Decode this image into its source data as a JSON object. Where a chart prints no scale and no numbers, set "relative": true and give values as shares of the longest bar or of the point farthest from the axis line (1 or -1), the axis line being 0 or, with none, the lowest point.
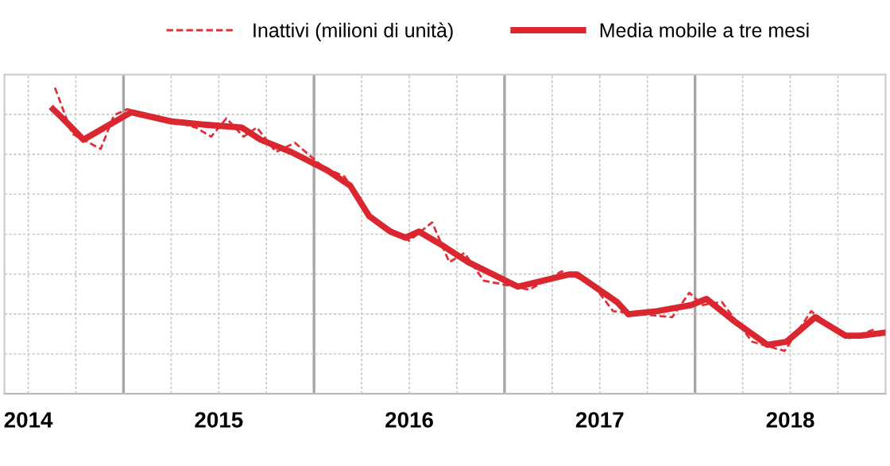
{
  "chart_data": {
    "type": "line",
    "relative": true,
    "grid": true,
    "legend": "top right",
    "xlim": [
      2014.375,
      2019.0
    ],
    "xticks": [
      {
        "value": 2014.5,
        "label": "2014"
      },
      {
        "value": 2015.5,
        "label": "2015"
      },
      {
        "value": 2016.5,
        "label": "2016"
      },
      {
        "value": 2017.5,
        "label": "2017"
      },
      {
        "value": 2018.5,
        "label": "2018"
      }
    ],
    "series": [
      {
        "name": "Inattivi (milioni di unità)",
        "color": "#e0303a",
        "line_style": "dashed",
        "x": [
          2014.64,
          2014.73,
          2014.88,
          2014.95,
          2015.02,
          2015.38,
          2015.46,
          2015.54,
          2015.63,
          2015.7,
          2015.8,
          2015.9,
          2016.05,
          2016.16,
          2016.29,
          2016.5,
          2016.62,
          2016.71,
          2016.79,
          2016.89,
          2017.13,
          2017.3,
          2017.46,
          2017.57,
          2017.88,
          2017.97,
          2018.04,
          2018.14,
          2018.3,
          2018.47,
          2018.61,
          2018.8,
          2018.94
        ],
        "values": [
          1.0,
          0.85,
          0.8,
          0.91,
          0.93,
          0.87,
          0.84,
          0.9,
          0.84,
          0.87,
          0.79,
          0.82,
          0.74,
          0.71,
          0.58,
          0.5,
          0.56,
          0.43,
          0.46,
          0.37,
          0.34,
          0.4,
          0.36,
          0.27,
          0.25,
          0.33,
          0.29,
          0.3,
          0.17,
          0.14,
          0.27,
          0.18,
          0.21
        ]
      },
      {
        "name": "Media mobile a tre mesi",
        "color": "#d9262f",
        "line_style": "solid",
        "x": [
          2014.63,
          2014.68,
          2014.79,
          2015.04,
          2015.25,
          2015.41,
          2015.62,
          2015.72,
          2015.88,
          2016.07,
          2016.19,
          2016.29,
          2016.4,
          2016.48,
          2016.55,
          2016.66,
          2016.76,
          2016.81,
          2017.07,
          2017.34,
          2017.38,
          2017.59,
          2017.65,
          2017.8,
          2017.98,
          2018.06,
          2018.2,
          2018.38,
          2018.48,
          2018.63,
          2018.79,
          2018.87,
          2019.0
        ],
        "values": [
          0.93,
          0.9,
          0.83,
          0.92,
          0.89,
          0.88,
          0.87,
          0.83,
          0.79,
          0.73,
          0.68,
          0.58,
          0.53,
          0.51,
          0.53,
          0.49,
          0.45,
          0.43,
          0.35,
          0.39,
          0.39,
          0.3,
          0.26,
          0.27,
          0.29,
          0.31,
          0.24,
          0.16,
          0.17,
          0.25,
          0.19,
          0.19,
          0.2
        ]
      }
    ]
  }
}
